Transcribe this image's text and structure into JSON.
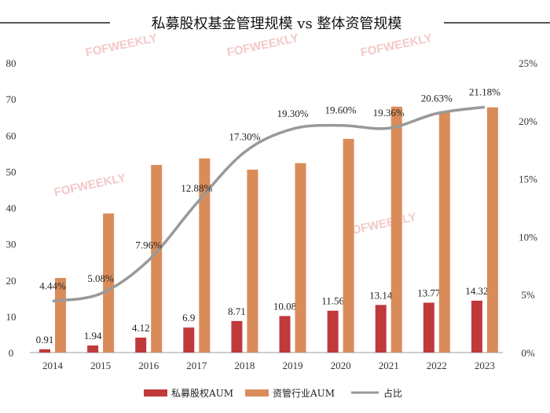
{
  "chart_data": {
    "type": "bar+line",
    "title": "私募股权基金管理规模 vs 整体资管规模",
    "categories": [
      "2014",
      "2015",
      "2016",
      "2017",
      "2018",
      "2019",
      "2020",
      "2021",
      "2022",
      "2023"
    ],
    "series": [
      {
        "name": "私募股权AUM",
        "type": "bar",
        "axis": "left",
        "color": "#c0393b",
        "values": [
          0.91,
          1.94,
          4.12,
          6.9,
          8.71,
          10.08,
          11.56,
          13.14,
          13.77,
          14.32
        ],
        "labels": [
          "0.91",
          "1.94",
          "4.12",
          "6.9",
          "8.71",
          "10.08",
          "11.56",
          "13.14",
          "13.77",
          "14.32"
        ]
      },
      {
        "name": "资管行业AUM",
        "type": "bar",
        "axis": "right-unlabeled",
        "color": "#d98c5a",
        "values": [
          20.6,
          38.4,
          51.8,
          53.6,
          50.5,
          52.3,
          59.0,
          67.9,
          66.6,
          67.7
        ]
      },
      {
        "name": "占比",
        "type": "line",
        "axis": "right",
        "color": "#999999",
        "values": [
          4.44,
          5.08,
          7.96,
          12.88,
          17.3,
          19.3,
          19.6,
          19.36,
          20.63,
          21.18
        ],
        "labels": [
          "4.44%",
          "5.08%",
          "7.96%",
          "12.88%",
          "17.30%",
          "19.30%",
          "19.60%",
          "19.36%",
          "20.63%",
          "21.18%"
        ]
      }
    ],
    "ylim": [
      0,
      80
    ],
    "yticks": [
      "0",
      "10",
      "20",
      "30",
      "40",
      "50",
      "60",
      "70",
      "80"
    ],
    "y2lim": [
      0,
      25
    ],
    "y2ticks": [
      "0%",
      "5%",
      "10%",
      "15%",
      "20%",
      "25%"
    ],
    "grid": false,
    "legend": "bottom"
  },
  "watermark": "FOFWEEKLY"
}
